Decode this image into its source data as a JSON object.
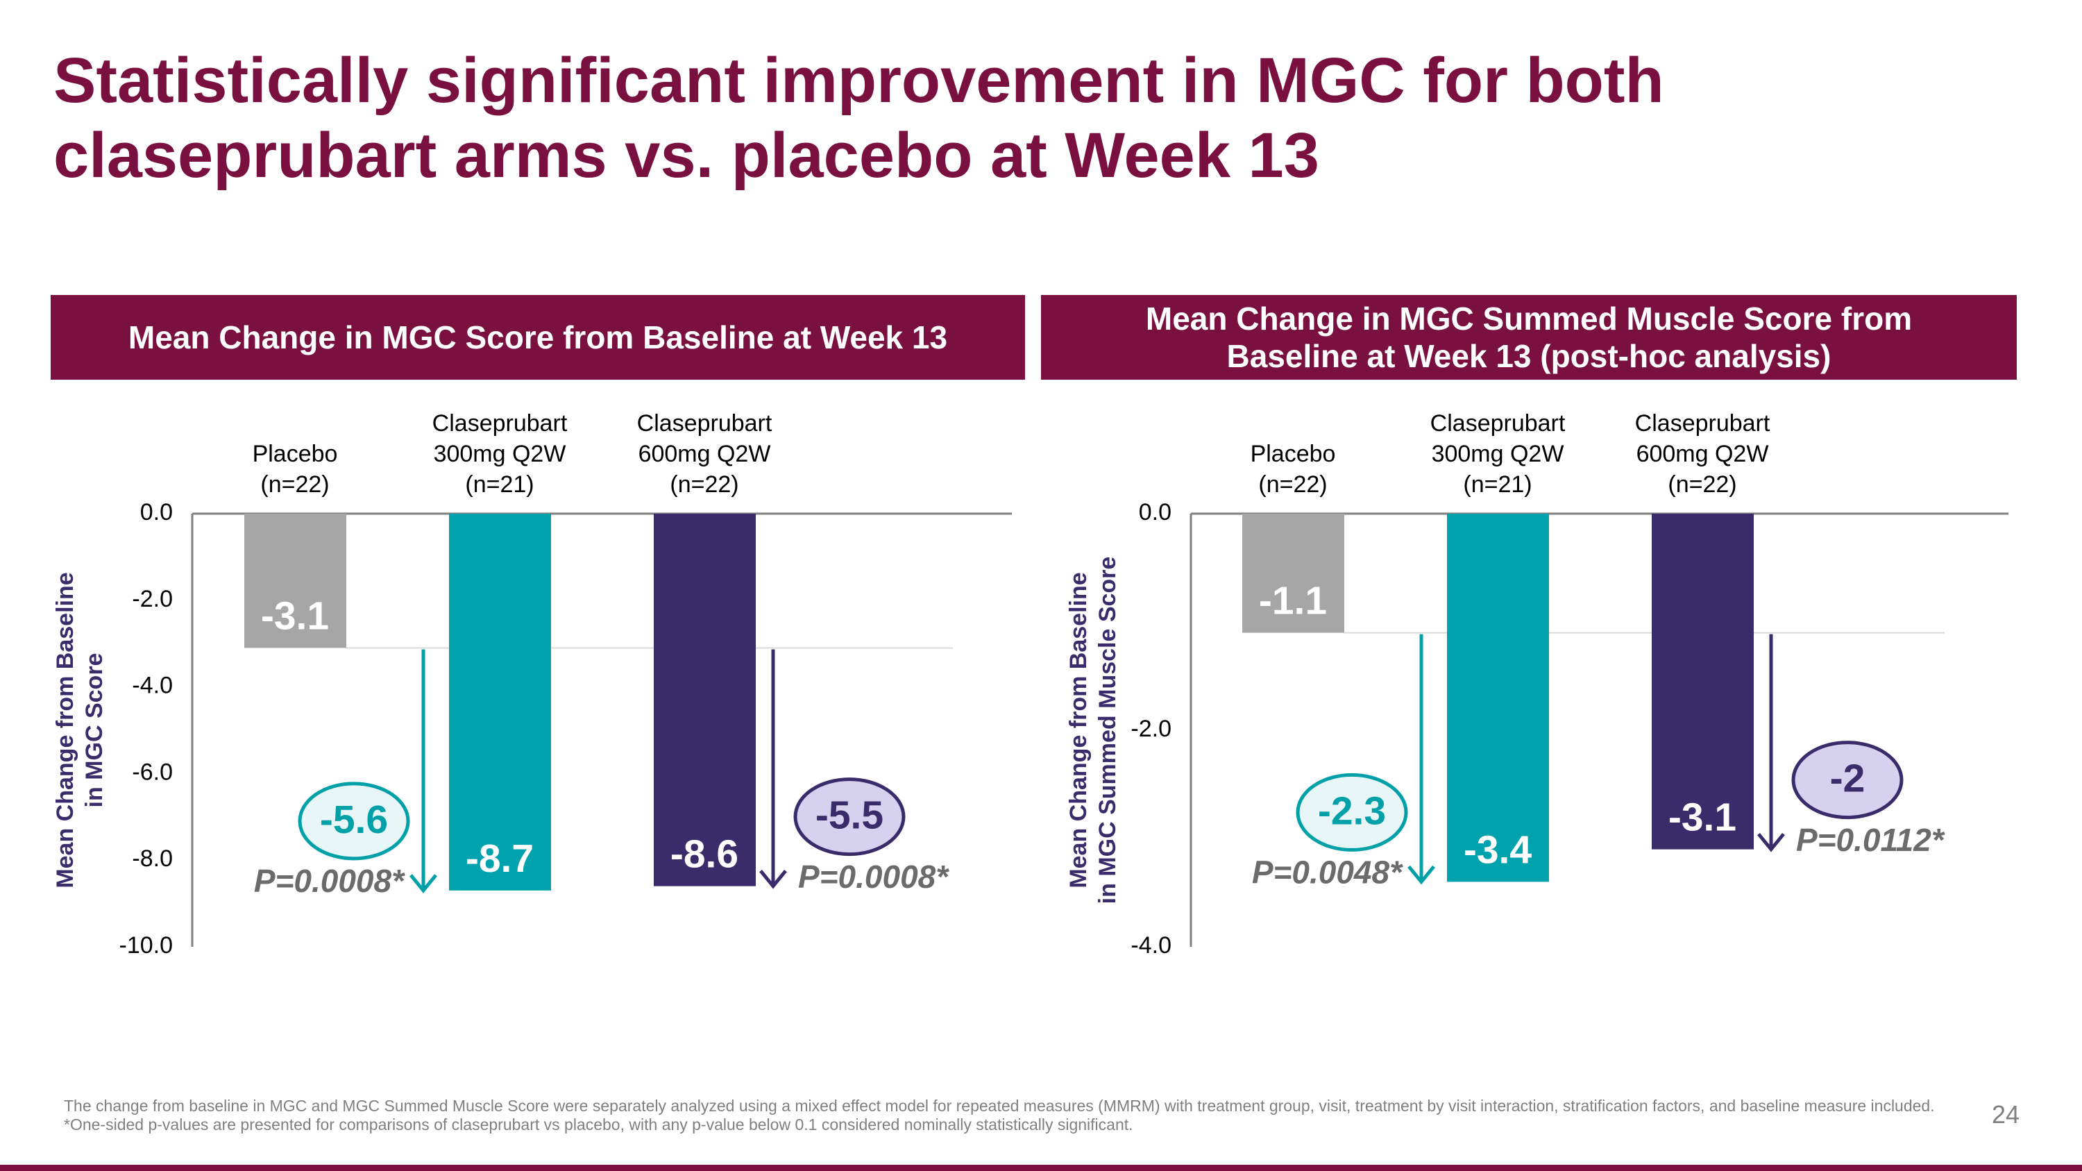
{
  "title": "Statistically significant improvement in MGC for both claseprubart arms vs. placebo at Week 13",
  "chart_data": [
    {
      "type": "bar",
      "title": "Mean Change in MGC Score from Baseline at Week 13",
      "ylabel": [
        "Mean Change from Baseline",
        "in MGC Score"
      ],
      "categories": [
        [
          "Placebo",
          "(n=22)"
        ],
        [
          "Claseprubart",
          "300mg Q2W",
          "(n=21)"
        ],
        [
          "Claseprubart",
          "600mg Q2W",
          "(n=22)"
        ]
      ],
      "values": [
        -3.1,
        -8.7,
        -8.6
      ],
      "colors": [
        "#a6a6a6",
        "#00a3ad",
        "#3a2b6b"
      ],
      "ylim": [
        -10,
        0
      ],
      "yticks": [
        {
          "value": 0,
          "label": "0.0"
        },
        {
          "value": -2,
          "label": "-2.0"
        },
        {
          "value": -4,
          "label": "-4.0"
        },
        {
          "value": -6,
          "label": "-6.0"
        },
        {
          "value": -8,
          "label": "-8.0"
        },
        {
          "value": -10,
          "label": "-10.0"
        }
      ],
      "annotations": [
        {
          "value": -5.6,
          "p_value": "P=0.0008*",
          "color": "#00a0a8",
          "fill": "#e8f6f7"
        },
        {
          "value": -5.5,
          "p_value": "P=0.0008*",
          "color": "#3a2b6b",
          "fill": "#d6d1ee"
        }
      ]
    },
    {
      "type": "bar",
      "title": "Mean Change in MGC Summed Muscle Score from Baseline at Week 13 (post-hoc analysis)",
      "ylabel": [
        "Mean Change from Baseline",
        "in MGC Summed Muscle Score"
      ],
      "categories": [
        [
          "Placebo",
          "(n=22)"
        ],
        [
          "Claseprubart",
          "300mg Q2W",
          "(n=21)"
        ],
        [
          "Claseprubart",
          "600mg Q2W",
          "(n=22)"
        ]
      ],
      "values": [
        -1.1,
        -3.4,
        -3.1
      ],
      "colors": [
        "#a6a6a6",
        "#00a3ad",
        "#3a2b6b"
      ],
      "ylim": [
        -4,
        0
      ],
      "yticks": [
        {
          "value": 0,
          "label": "0.0"
        },
        {
          "value": -2,
          "label": "-2.0"
        },
        {
          "value": -4,
          "label": "-4.0"
        }
      ],
      "annotations": [
        {
          "value": -2.3,
          "p_value": "P=0.0048*",
          "color": "#00a0a8",
          "fill": "#e8f6f7"
        },
        {
          "value": -2.0,
          "p_value": "P=0.0112*",
          "color": "#3a2b6b",
          "fill": "#d6d1ee"
        }
      ]
    }
  ],
  "footnotes": [
    "The change from baseline in MGC and MGC Summed Muscle Score were separately analyzed using a mixed effect model for repeated measures (MMRM) with treatment group, visit, treatment by visit interaction, stratification factors, and baseline measure included.",
    "*One-sided p-values are presented for comparisons of claseprubart vs placebo, with any p-value below 0.1 considered nominally statistically significant."
  ],
  "page_number": 24
}
